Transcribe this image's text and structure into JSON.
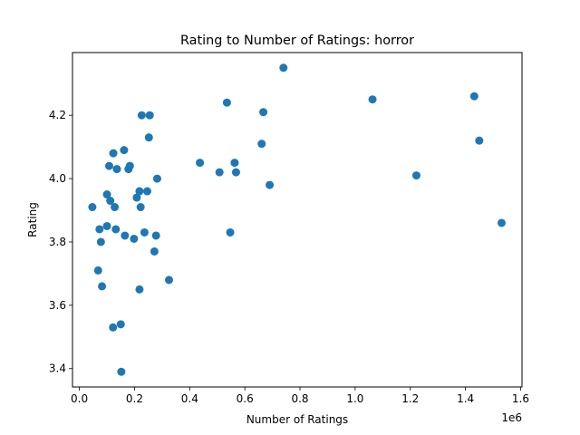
{
  "chart_data": {
    "type": "scatter",
    "title": "Rating to Number of Ratings: horror",
    "xlabel": "Number of Ratings",
    "ylabel": "Rating",
    "x_offset_label": "1e6",
    "xlim": [
      -0.025,
      1.605
    ],
    "ylim": [
      3.342,
      4.398
    ],
    "x_ticks": [
      0.0,
      0.2,
      0.4,
      0.6,
      0.8,
      1.0,
      1.2,
      1.4,
      1.6
    ],
    "x_tick_labels": [
      "0.0",
      "0.2",
      "0.4",
      "0.6",
      "0.8",
      "1.0",
      "1.2",
      "1.4",
      "1.6"
    ],
    "y_ticks": [
      3.4,
      3.6,
      3.8,
      4.0,
      4.2
    ],
    "y_tick_labels": [
      "3.4",
      "3.6",
      "3.8",
      "4.0",
      "4.2"
    ],
    "grid": false,
    "marker_color": "#1f77b4",
    "series": [
      {
        "points": [
          [
            0.047,
            3.91
          ],
          [
            0.068,
            3.71
          ],
          [
            0.073,
            3.84
          ],
          [
            0.078,
            3.8
          ],
          [
            0.082,
            3.66
          ],
          [
            0.1,
            3.85
          ],
          [
            0.1,
            3.95
          ],
          [
            0.108,
            4.04
          ],
          [
            0.112,
            3.93
          ],
          [
            0.122,
            3.53
          ],
          [
            0.123,
            4.08
          ],
          [
            0.128,
            3.91
          ],
          [
            0.132,
            3.84
          ],
          [
            0.136,
            4.03
          ],
          [
            0.15,
            3.54
          ],
          [
            0.152,
            3.39
          ],
          [
            0.162,
            4.09
          ],
          [
            0.165,
            3.82
          ],
          [
            0.178,
            4.03
          ],
          [
            0.183,
            4.04
          ],
          [
            0.198,
            3.81
          ],
          [
            0.208,
            3.94
          ],
          [
            0.218,
            3.65
          ],
          [
            0.218,
            3.96
          ],
          [
            0.222,
            3.91
          ],
          [
            0.226,
            4.2
          ],
          [
            0.236,
            3.83
          ],
          [
            0.246,
            3.96
          ],
          [
            0.252,
            4.13
          ],
          [
            0.255,
            4.2
          ],
          [
            0.272,
            3.77
          ],
          [
            0.278,
            3.82
          ],
          [
            0.282,
            4.0
          ],
          [
            0.325,
            3.68
          ],
          [
            0.437,
            4.05
          ],
          [
            0.508,
            4.02
          ],
          [
            0.535,
            4.24
          ],
          [
            0.547,
            3.83
          ],
          [
            0.563,
            4.05
          ],
          [
            0.568,
            4.02
          ],
          [
            0.661,
            4.11
          ],
          [
            0.667,
            4.21
          ],
          [
            0.69,
            3.98
          ],
          [
            0.74,
            4.35
          ],
          [
            1.063,
            4.25
          ],
          [
            1.222,
            4.01
          ],
          [
            1.432,
            4.26
          ],
          [
            1.45,
            4.12
          ],
          [
            1.531,
            3.86
          ]
        ]
      }
    ]
  }
}
